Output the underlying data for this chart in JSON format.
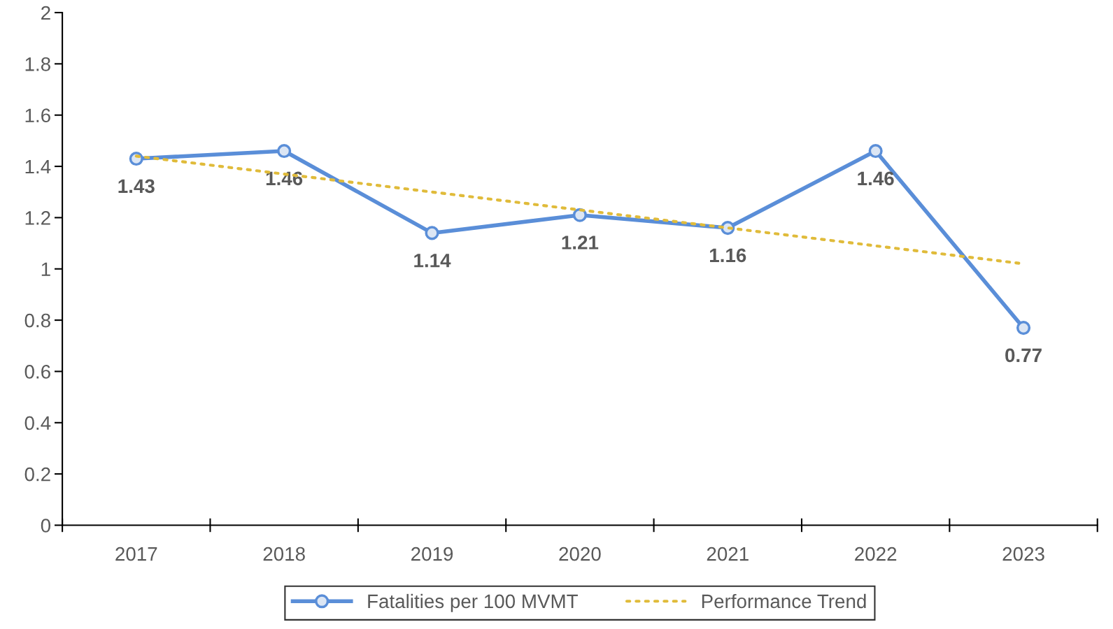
{
  "chart_data": {
    "type": "line",
    "categories": [
      "2017",
      "2018",
      "2019",
      "2020",
      "2021",
      "2022",
      "2023"
    ],
    "series": [
      {
        "name": "Fatalities per 100 MVMT",
        "color": "#5a8ed8",
        "values": [
          1.43,
          1.46,
          1.14,
          1.21,
          1.16,
          1.46,
          0.77
        ],
        "value_labels": [
          "1.43",
          "1.46",
          "1.14",
          "1.21",
          "1.16",
          "1.46",
          "0.77"
        ],
        "marker": "circle",
        "line_style": "solid"
      },
      {
        "name": "Performance Trend",
        "color": "#e0bb3a",
        "values": [
          1.44,
          1.37,
          1.3,
          1.23,
          1.16,
          1.09,
          1.02
        ],
        "marker": "none",
        "line_style": "dotted"
      }
    ],
    "ylim": [
      0,
      2
    ],
    "yticks": [
      0,
      0.2,
      0.4,
      0.6,
      0.8,
      1,
      1.2,
      1.4,
      1.6,
      1.8,
      2
    ],
    "grid": false,
    "legend": "bottom"
  }
}
